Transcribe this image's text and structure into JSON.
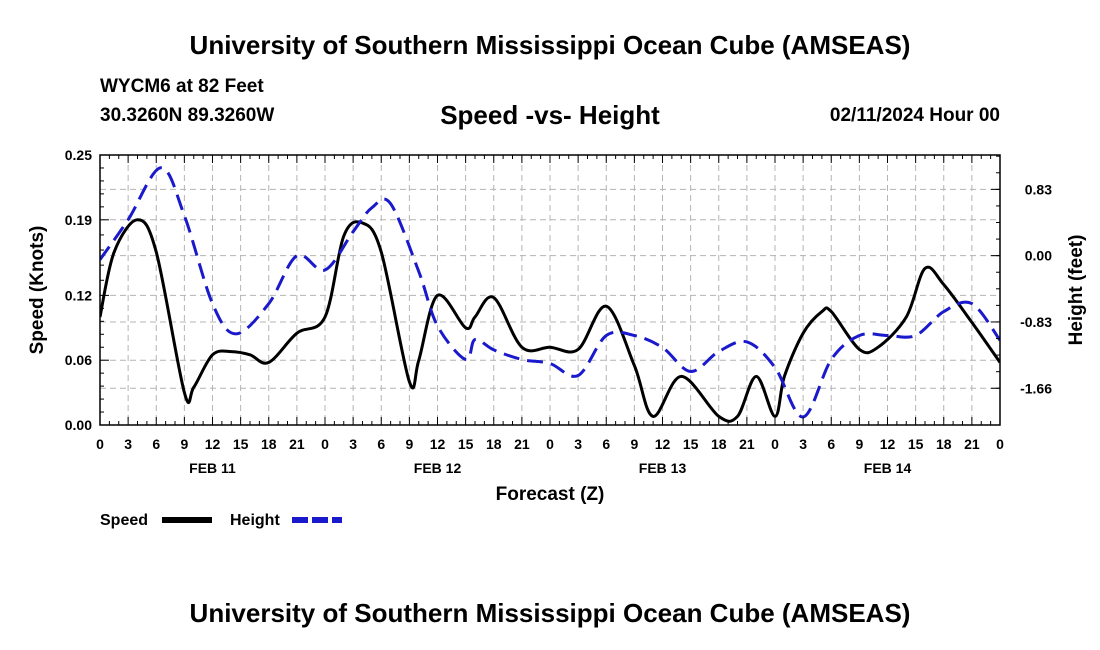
{
  "header": {
    "title": "University of Southern Mississippi Ocean Cube (AMSEAS)",
    "station": "WYCM6 at 82 Feet",
    "coords": "30.3260N  89.3260W",
    "subtitle": "Speed -vs- Height",
    "date": "02/11/2024 Hour 00"
  },
  "footer": {
    "title": "University of Southern Mississippi Ocean Cube (AMSEAS)"
  },
  "colors": {
    "speed": "#000000",
    "height": "#1a1acc",
    "grid": "#b4b4b4"
  },
  "chart_data": {
    "type": "line",
    "title": "Speed -vs- Height",
    "xlabel": "Forecast (Z)",
    "ylabel": "Speed (Knots)",
    "y2label": "Height (feet)",
    "xlim": [
      0,
      96
    ],
    "ylim": [
      0,
      0.25
    ],
    "y2lim": [
      -2.12,
      1.26
    ],
    "x_tick_labels": [
      "0",
      "3",
      "6",
      "9",
      "12",
      "15",
      "18",
      "21",
      "0",
      "3",
      "6",
      "9",
      "12",
      "15",
      "18",
      "21",
      "0",
      "3",
      "6",
      "9",
      "12",
      "15",
      "18",
      "21",
      "0",
      "3",
      "6",
      "9",
      "12",
      "15",
      "18",
      "21",
      "0"
    ],
    "day_labels": [
      {
        "label": "FEB 11",
        "x": 12
      },
      {
        "label": "FEB 12",
        "x": 36
      },
      {
        "label": "FEB 13",
        "x": 60
      },
      {
        "label": "FEB 14",
        "x": 84
      }
    ],
    "y_ticks": [
      "0.00",
      "0.06",
      "0.12",
      "0.19",
      "0.25"
    ],
    "y2_ticks": [
      "-1.66",
      "-0.83",
      "0.00",
      "0.83"
    ],
    "legend": [
      "Speed",
      "Height"
    ],
    "series": [
      {
        "name": "Speed",
        "style": "solid",
        "axis": "left",
        "x": [
          0,
          1.5,
          4,
          6,
          9,
          10,
          12,
          14,
          16,
          18,
          21,
          24,
          26,
          28,
          30,
          33,
          34,
          36,
          39,
          40,
          42,
          45,
          48,
          51,
          54,
          57,
          59,
          62,
          66,
          68,
          70,
          72,
          73,
          75,
          77,
          78,
          81,
          83,
          86,
          88,
          90,
          93,
          96
        ],
        "y": [
          0.1,
          0.16,
          0.19,
          0.16,
          0.03,
          0.035,
          0.065,
          0.068,
          0.065,
          0.058,
          0.085,
          0.1,
          0.175,
          0.187,
          0.16,
          0.04,
          0.06,
          0.12,
          0.09,
          0.1,
          0.118,
          0.072,
          0.072,
          0.07,
          0.11,
          0.055,
          0.008,
          0.045,
          0.008,
          0.008,
          0.045,
          0.008,
          0.045,
          0.085,
          0.105,
          0.105,
          0.07,
          0.072,
          0.1,
          0.145,
          0.13,
          0.095,
          0.058
        ]
      },
      {
        "name": "Height",
        "style": "dashed",
        "axis": "right",
        "x": [
          0,
          3,
          6.5,
          9,
          12,
          14.5,
          18,
          21,
          24,
          27,
          29,
          31,
          34,
          36,
          39,
          40,
          42,
          45,
          48,
          51,
          54,
          57,
          60,
          63,
          66,
          69,
          72,
          75,
          78,
          81,
          84,
          87,
          90,
          93,
          96
        ],
        "y": [
          -0.05,
          0.45,
          1.1,
          0.5,
          -0.6,
          -0.98,
          -0.6,
          0.0,
          -0.18,
          0.3,
          0.6,
          0.65,
          -0.2,
          -0.88,
          -1.3,
          -1.05,
          -1.18,
          -1.3,
          -1.35,
          -1.5,
          -1.0,
          -1.0,
          -1.15,
          -1.45,
          -1.2,
          -1.08,
          -1.4,
          -2.02,
          -1.3,
          -1.0,
          -1.0,
          -1.0,
          -0.7,
          -0.6,
          -1.06
        ]
      }
    ]
  }
}
